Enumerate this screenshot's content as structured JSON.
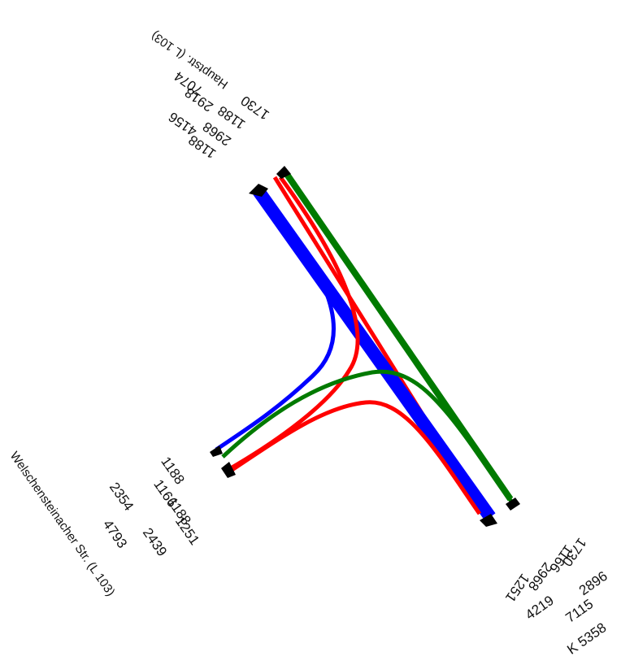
{
  "colors": {
    "blue": "#0000ff",
    "red": "#ff0000",
    "green": "#007a00",
    "marker": "#000000"
  },
  "arms": {
    "north": {
      "road_name": "Hauptstr. (L 103)",
      "total": "7074",
      "subtotals": [
        "2918",
        "4156"
      ],
      "flows": [
        "1730",
        "1188",
        "2968",
        "1188"
      ]
    },
    "west": {
      "road_name": "Welschensteinacher Str. (L 103)",
      "total": "4793",
      "subtotals": [
        "2354",
        "2439"
      ],
      "flows": [
        "1188",
        "1166",
        "1188",
        "1251"
      ]
    },
    "southeast": {
      "road_name": "K 5358",
      "total": "7115",
      "subtotals": [
        "4219",
        "2896"
      ],
      "flows": [
        "1251",
        "2968",
        "1166",
        "1730"
      ]
    }
  }
}
